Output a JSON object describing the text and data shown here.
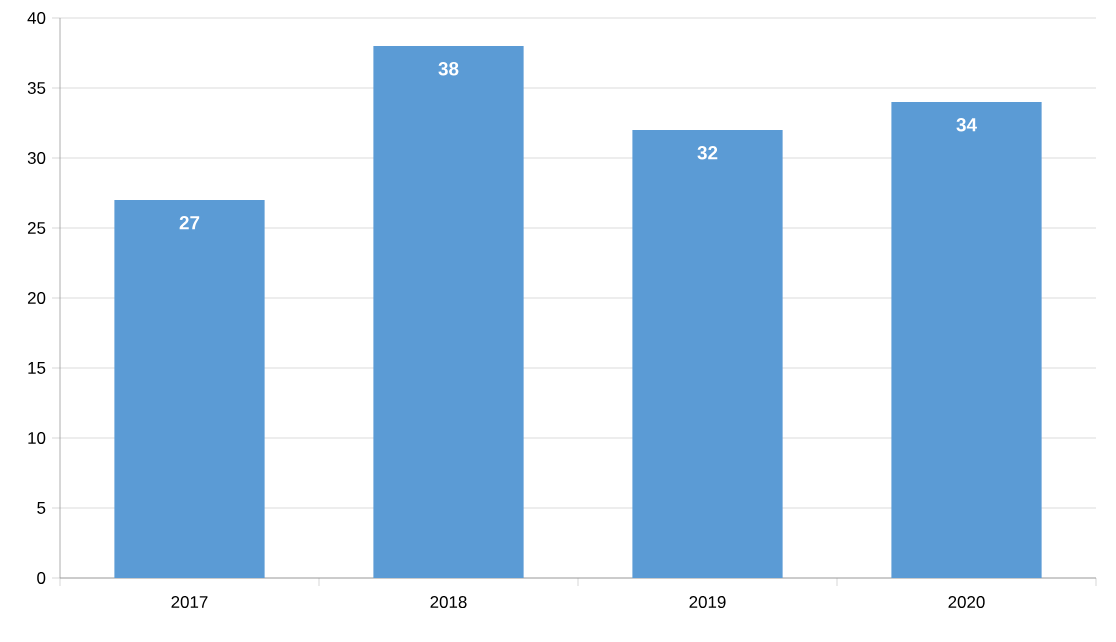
{
  "chart_data": {
    "type": "bar",
    "categories": [
      "2017",
      "2018",
      "2019",
      "2020"
    ],
    "values": [
      27,
      38,
      32,
      34
    ],
    "color": "#5b9bd5",
    "ylim": [
      0,
      40
    ],
    "yticks": [
      0,
      5,
      10,
      15,
      20,
      25,
      30,
      35,
      40
    ],
    "grid": "y",
    "data_labels": true
  }
}
